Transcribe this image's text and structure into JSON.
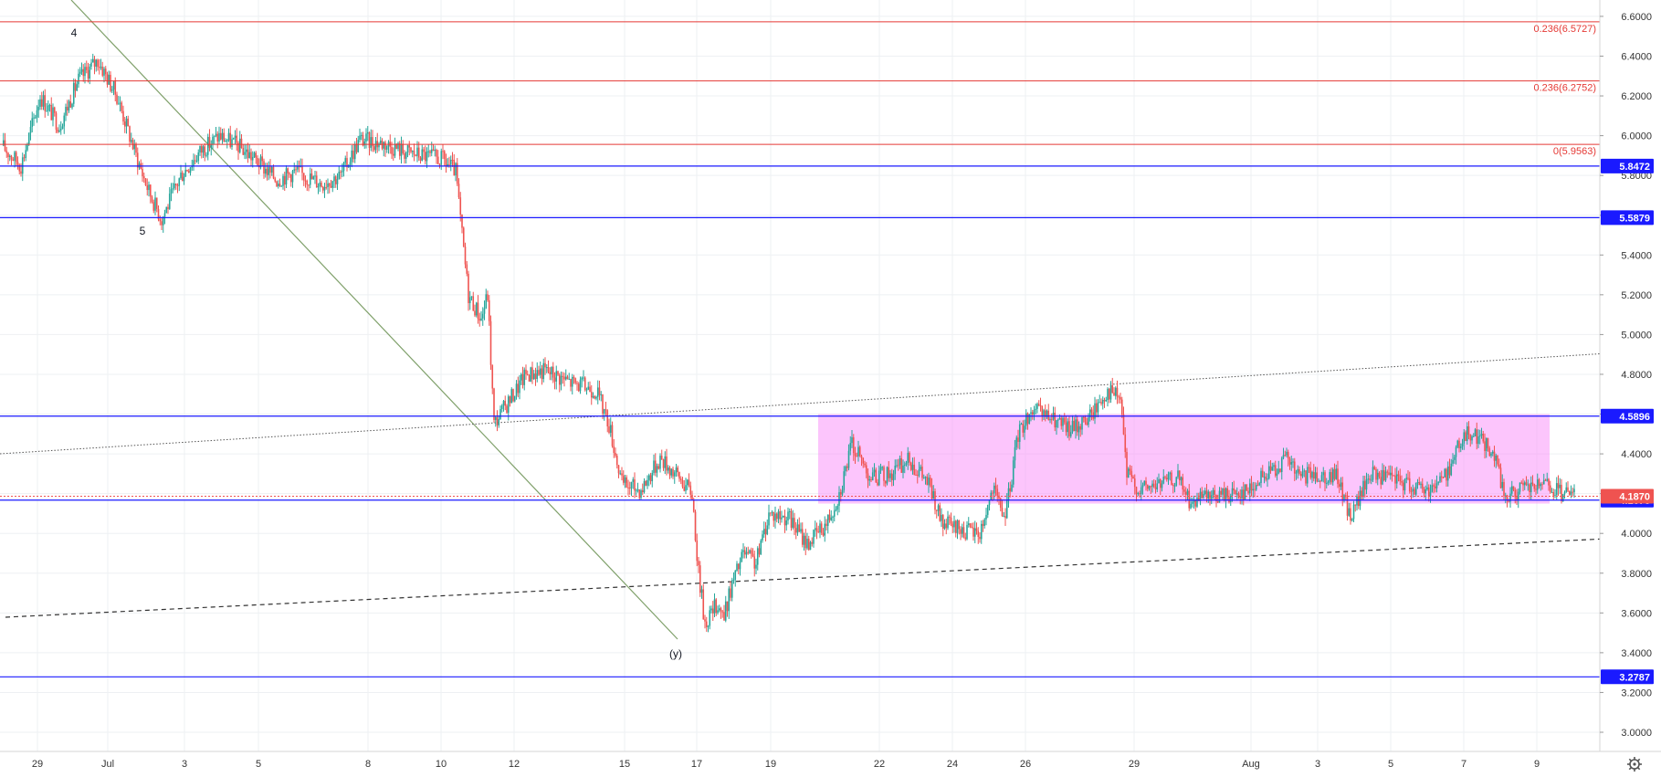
{
  "chart_data": {
    "type": "candlestick",
    "y_range": [
      2.9,
      6.65
    ],
    "y_ticks": [
      "6.6000",
      "6.4000",
      "6.2000",
      "6.0000",
      "5.8000",
      "5.6000",
      "5.4000",
      "5.2000",
      "5.0000",
      "4.8000",
      "4.6000",
      "4.4000",
      "4.2000",
      "4.0000",
      "3.8000",
      "3.6000",
      "3.4000",
      "3.2000",
      "3.0000"
    ],
    "x_ticks": [
      "29",
      "Jul",
      "3",
      "5",
      "8",
      "10",
      "12",
      "15",
      "17",
      "19",
      "22",
      "24",
      "26",
      "29",
      "Aug",
      "3",
      "5",
      "7",
      "9"
    ],
    "horizontal_levels": [
      {
        "label": "5.8472",
        "value": 5.8472,
        "color": "#1a1aff"
      },
      {
        "label": "5.5879",
        "value": 5.5879,
        "color": "#1a1aff"
      },
      {
        "label": "4.5896",
        "value": 4.5896,
        "color": "#1a1aff"
      },
      {
        "label": "4.1673",
        "value": 4.1673,
        "color": "#1a1aff"
      },
      {
        "label": "3.2787",
        "value": 3.2787,
        "color": "#1a1aff"
      }
    ],
    "fib_levels": [
      {
        "label": "0.236(6.5727)",
        "value": 6.5727,
        "color": "#e53935"
      },
      {
        "label": "0.236(6.2752)",
        "value": 6.2752,
        "color": "#e53935"
      },
      {
        "label": "0(5.9563)",
        "value": 5.9563,
        "color": "#e53935"
      }
    ],
    "last_price": {
      "label": "4.1870",
      "value": 4.187,
      "color": "#ef5350"
    },
    "wave_labels": [
      "4",
      "5",
      "(y)"
    ],
    "consolidation_range": {
      "low": 4.15,
      "high": 4.6
    },
    "price_path": [
      [
        0,
        5.95
      ],
      [
        6,
        5.85
      ],
      [
        12,
        6.2
      ],
      [
        18,
        6.05
      ],
      [
        24,
        6.28
      ],
      [
        30,
        6.38
      ],
      [
        36,
        6.2
      ],
      [
        42,
        5.9
      ],
      [
        46,
        5.72
      ],
      [
        50,
        5.58
      ],
      [
        56,
        5.8
      ],
      [
        62,
        5.92
      ],
      [
        68,
        6.0
      ],
      [
        74,
        5.95
      ],
      [
        80,
        5.87
      ],
      [
        86,
        5.78
      ],
      [
        92,
        5.82
      ],
      [
        100,
        5.76
      ],
      [
        106,
        5.8
      ],
      [
        112,
        5.98
      ],
      [
        120,
        5.96
      ],
      [
        126,
        5.92
      ],
      [
        132,
        5.9
      ],
      [
        138,
        5.88
      ],
      [
        142,
        5.82
      ],
      [
        144,
        5.5
      ],
      [
        146,
        5.2
      ],
      [
        150,
        5.08
      ],
      [
        152,
        5.2
      ],
      [
        154,
        4.55
      ],
      [
        158,
        4.65
      ],
      [
        164,
        4.8
      ],
      [
        170,
        4.82
      ],
      [
        178,
        4.76
      ],
      [
        186,
        4.72
      ],
      [
        190,
        4.55
      ],
      [
        194,
        4.25
      ],
      [
        200,
        4.22
      ],
      [
        206,
        4.38
      ],
      [
        212,
        4.28
      ],
      [
        216,
        4.2
      ],
      [
        218,
        3.8
      ],
      [
        220,
        3.55
      ],
      [
        224,
        3.65
      ],
      [
        226,
        3.58
      ],
      [
        228,
        3.72
      ],
      [
        232,
        3.9
      ],
      [
        236,
        3.85
      ],
      [
        240,
        4.1
      ],
      [
        246,
        4.08
      ],
      [
        252,
        3.95
      ],
      [
        258,
        4.05
      ],
      [
        262,
        4.2
      ],
      [
        266,
        4.45
      ],
      [
        272,
        4.28
      ],
      [
        278,
        4.3
      ],
      [
        284,
        4.37
      ],
      [
        290,
        4.25
      ],
      [
        294,
        4.05
      ],
      [
        300,
        4.02
      ],
      [
        306,
        4.0
      ],
      [
        310,
        4.22
      ],
      [
        314,
        4.08
      ],
      [
        318,
        4.5
      ],
      [
        322,
        4.62
      ],
      [
        328,
        4.58
      ],
      [
        334,
        4.52
      ],
      [
        340,
        4.58
      ],
      [
        346,
        4.72
      ],
      [
        350,
        4.68
      ],
      [
        352,
        4.3
      ],
      [
        356,
        4.22
      ],
      [
        362,
        4.25
      ],
      [
        368,
        4.28
      ],
      [
        372,
        4.15
      ],
      [
        378,
        4.18
      ],
      [
        384,
        4.2
      ],
      [
        390,
        4.22
      ],
      [
        396,
        4.3
      ],
      [
        402,
        4.38
      ],
      [
        406,
        4.28
      ],
      [
        412,
        4.3
      ],
      [
        418,
        4.28
      ],
      [
        422,
        4.08
      ],
      [
        428,
        4.3
      ],
      [
        434,
        4.28
      ],
      [
        440,
        4.25
      ],
      [
        446,
        4.22
      ],
      [
        452,
        4.3
      ],
      [
        456,
        4.45
      ],
      [
        460,
        4.52
      ],
      [
        464,
        4.45
      ],
      [
        468,
        4.35
      ],
      [
        470,
        4.18
      ],
      [
        476,
        4.22
      ],
      [
        482,
        4.24
      ],
      [
        488,
        4.2
      ],
      [
        492,
        4.19
      ]
    ]
  },
  "badges": {
    "top_right_icon": "settings-icon"
  }
}
